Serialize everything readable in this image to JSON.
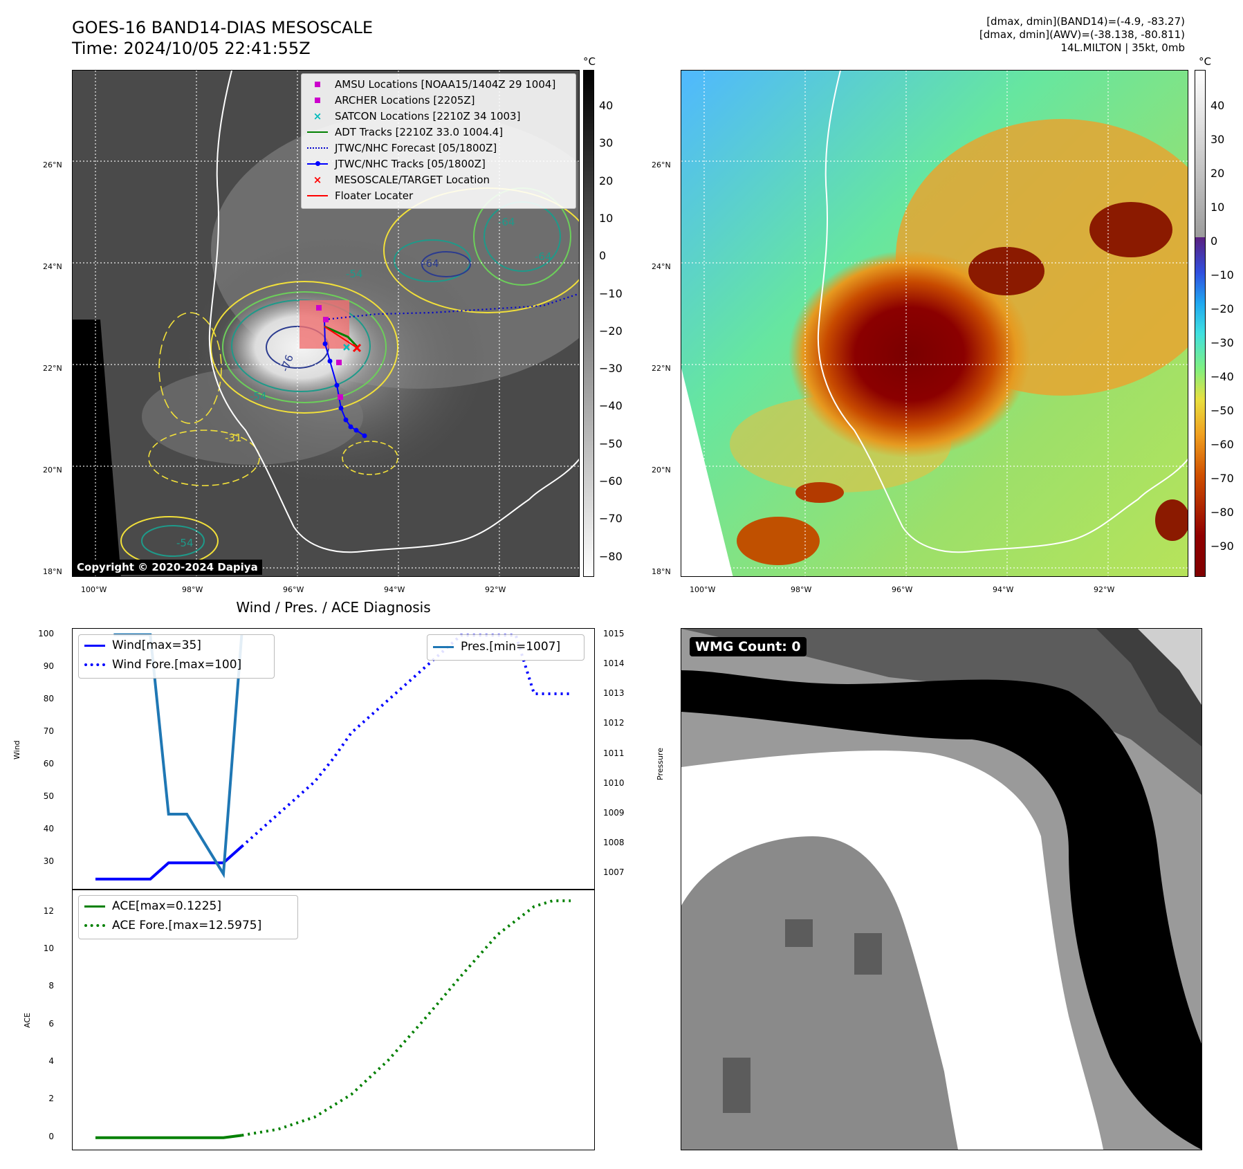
{
  "header": {
    "title_line1": "GOES-16 BAND14-DIAS MESOSCALE",
    "title_line2": "Time: 2024/10/05 22:41:55Z",
    "right_line1": "[dmax, dmin](BAND14)=(-4.9, -83.27)",
    "right_line2": "[dmax, dmin](AWV)=(-38.138, -80.811)",
    "right_line3": "14L.MILTON | 35kt, 0mb"
  },
  "map_left": {
    "colorbar_unit": "°C",
    "colorbar_ticks": [
      "40",
      "30",
      "20",
      "10",
      "0",
      "−10",
      "−20",
      "−30",
      "−40",
      "−50",
      "−60",
      "−70",
      "−80"
    ],
    "lat_ticks": [
      "26°N",
      "24°N",
      "22°N",
      "20°N",
      "18°N"
    ],
    "lon_ticks": [
      "100°W",
      "98°W",
      "96°W",
      "94°W",
      "92°W"
    ],
    "copyright": "Copyright © 2020-2024 Dapiya",
    "contour_labels": [
      "-54",
      "-64",
      "-64",
      "-54",
      "-64",
      "-76",
      "-54",
      "-31"
    ],
    "legend": [
      {
        "label": "AMSU Locations [NOAA15/1404Z 29 1004]",
        "symbol": "square",
        "color": "#cc00cc"
      },
      {
        "label": "ARCHER Locations [2205Z]",
        "symbol": "square",
        "color": "#cc00cc"
      },
      {
        "label": "SATCON Locations [2210Z 34 1003]",
        "symbol": "x",
        "color": "#00bbbb"
      },
      {
        "label": "ADT Tracks [2210Z 33.0 1004.4]",
        "symbol": "line",
        "color": "#008000"
      },
      {
        "label": "JTWC/NHC Forecast [05/1800Z]",
        "symbol": "dotted",
        "color": "#0000cc"
      },
      {
        "label": "JTWC/NHC Tracks [05/1800Z]",
        "symbol": "line-dot",
        "color": "#0000ff"
      },
      {
        "label": "MESOSCALE/TARGET Location",
        "symbol": "x",
        "color": "#ff0000"
      },
      {
        "label": "Floater Locater",
        "symbol": "line",
        "color": "#ff0000"
      }
    ]
  },
  "map_right": {
    "colorbar_unit": "°C",
    "colorbar_ticks": [
      "40",
      "30",
      "20",
      "10",
      "0",
      "−10",
      "−20",
      "−30",
      "−40",
      "−50",
      "−60",
      "−70",
      "−80",
      "−90"
    ],
    "lat_ticks": [
      "26°N",
      "24°N",
      "22°N",
      "20°N",
      "18°N"
    ],
    "lon_ticks": [
      "100°W",
      "98°W",
      "96°W",
      "94°W",
      "92°W"
    ]
  },
  "chart_data": [
    {
      "type": "line",
      "title": "Wind / Pres. / ACE Diagnosis",
      "ylabel": "Wind",
      "ylabel_right": "Pressure",
      "x_index_range": [
        0,
        26
      ],
      "ylim": [
        22,
        102
      ],
      "ylim_right": [
        1006.5,
        1015.2
      ],
      "yticks": [
        30,
        40,
        50,
        60,
        70,
        80,
        90,
        100
      ],
      "yticks_right": [
        1007,
        1008,
        1009,
        1010,
        1011,
        1012,
        1013,
        1014,
        1015
      ],
      "series": [
        {
          "name": "Wind[max=35]",
          "axis": "left",
          "style": "solid",
          "color": "#0000ff",
          "x": [
            0,
            1,
            2,
            3,
            4,
            5,
            6,
            7,
            8
          ],
          "values": [
            25,
            25,
            25,
            25,
            30,
            30,
            30,
            30,
            35
          ]
        },
        {
          "name": "Wind Fore.[max=100]",
          "axis": "left",
          "style": "dotted",
          "color": "#0000ff",
          "x": [
            8,
            9,
            10,
            11,
            12,
            13,
            14,
            15,
            16,
            17,
            18,
            19,
            20,
            21,
            22,
            23,
            24,
            25,
            26
          ],
          "values": [
            35,
            40,
            45,
            50,
            55,
            62,
            70,
            75,
            80,
            85,
            90,
            95,
            100,
            100,
            100,
            100,
            82,
            82,
            82
          ]
        },
        {
          "name": "Pres.[min=1007]",
          "axis": "right",
          "style": "solid",
          "color": "#1f77b4",
          "x": [
            1,
            2,
            3,
            4,
            5,
            6,
            7,
            8
          ],
          "values": [
            1015,
            1015,
            1015,
            1009,
            1009,
            1008,
            1007,
            1015
          ]
        }
      ]
    },
    {
      "type": "line",
      "ylabel": "ACE",
      "x_index_range": [
        0,
        26
      ],
      "ylim": [
        -0.6,
        13.2
      ],
      "yticks": [
        0,
        2,
        4,
        6,
        8,
        10,
        12
      ],
      "series": [
        {
          "name": "ACE[max=0.1225]",
          "style": "solid",
          "color": "#008000",
          "x": [
            0,
            1,
            2,
            3,
            4,
            5,
            6,
            7,
            8
          ],
          "values": [
            0,
            0,
            0,
            0,
            0,
            0,
            0,
            0,
            0.1225
          ]
        },
        {
          "name": "ACE Fore.[max=12.5975]",
          "style": "dotted",
          "color": "#008000",
          "x": [
            8,
            10,
            12,
            14,
            16,
            18,
            20,
            22,
            24,
            25,
            26
          ],
          "values": [
            0.1225,
            0.45,
            1.1,
            2.3,
            4.1,
            6.3,
            8.6,
            10.8,
            12.3,
            12.6,
            12.6
          ]
        }
      ]
    }
  ],
  "bottom_right": {
    "badge": "WMG Count: 0"
  }
}
